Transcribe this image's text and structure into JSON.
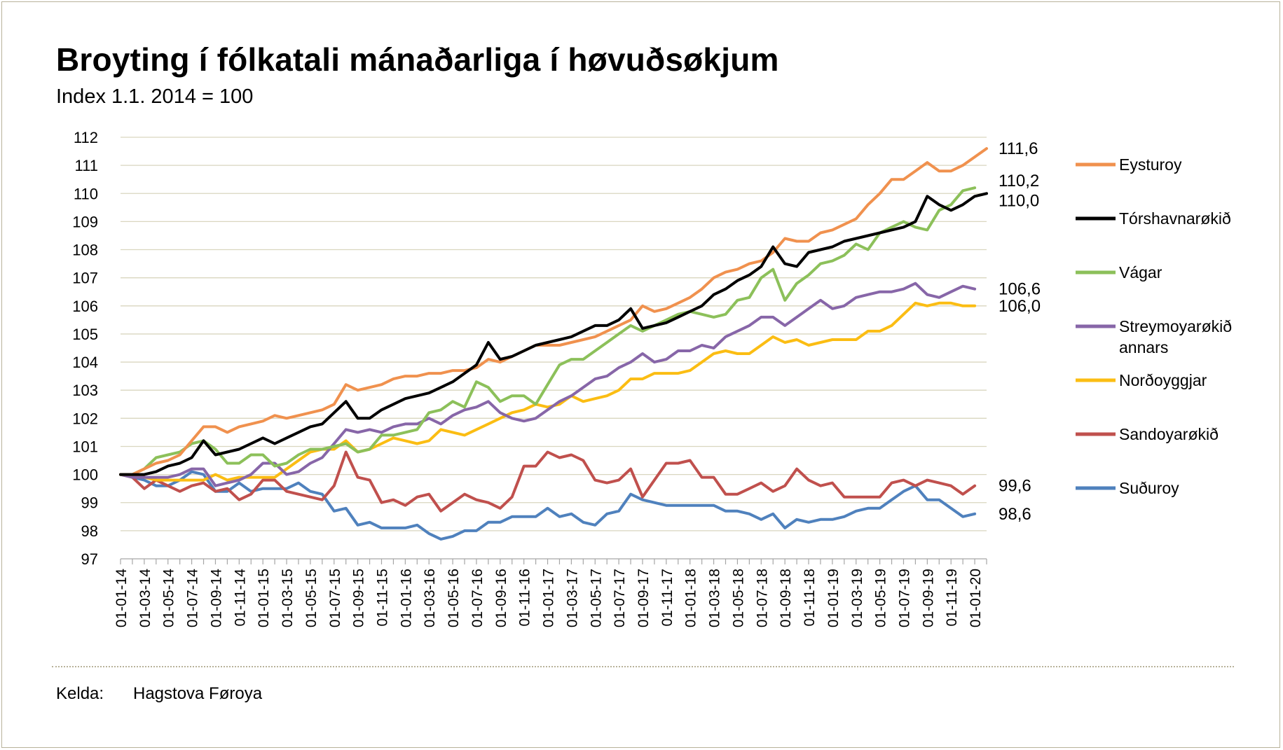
{
  "title": "Broyting í fólkatali mánaðarliga í høvuðsøkjum",
  "subtitle": "Index 1.1. 2014 = 100",
  "source": {
    "label": "Kelda:",
    "value": "Hagstova Føroya"
  },
  "chart_data": {
    "type": "line",
    "ylim": [
      97,
      112
    ],
    "yticks": [
      97,
      98,
      99,
      100,
      101,
      102,
      103,
      104,
      105,
      106,
      107,
      108,
      109,
      110,
      111,
      112
    ],
    "grid": true,
    "legend_position": "right",
    "x_tick_labels": [
      "01-01-14",
      "01-03-14",
      "01-05-14",
      "01-07-14",
      "01-09-14",
      "01-11-14",
      "01-01-15",
      "01-03-15",
      "01-05-15",
      "01-07-15",
      "01-09-15",
      "01-11-15",
      "01-01-16",
      "01-03-16",
      "01-05-16",
      "01-07-16",
      "01-09-16",
      "01-11-16",
      "01-01-17",
      "01-03-17",
      "01-05-17",
      "01-07-17",
      "01-09-17",
      "01-11-17",
      "01-01-18",
      "01-03-18",
      "01-05-18",
      "01-07-18",
      "01-09-18",
      "01-11-18",
      "01-01-19",
      "01-03-19",
      "01-05-19",
      "01-07-19",
      "01-09-19",
      "01-11-19",
      "01-01-20"
    ],
    "series": [
      {
        "name": "Eysturoy",
        "color": "#f0914e",
        "end_label": "111,6",
        "values": [
          100,
          100.0,
          100.2,
          100.4,
          100.5,
          100.7,
          101.2,
          101.7,
          101.7,
          101.5,
          101.7,
          101.8,
          101.9,
          102.1,
          102.0,
          102.1,
          102.2,
          102.3,
          102.5,
          103.2,
          103.0,
          103.1,
          103.2,
          103.4,
          103.5,
          103.5,
          103.6,
          103.6,
          103.7,
          103.7,
          103.8,
          104.1,
          104.0,
          104.2,
          104.4,
          104.6,
          104.6,
          104.6,
          104.7,
          104.8,
          104.9,
          105.1,
          105.3,
          105.5,
          106.0,
          105.8,
          105.9,
          106.1,
          106.3,
          106.6,
          107.0,
          107.2,
          107.3,
          107.5,
          107.6,
          107.9,
          108.4,
          108.3,
          108.3,
          108.6,
          108.7,
          108.9,
          109.1,
          109.6,
          110.0,
          110.5,
          110.5,
          110.8,
          111.1,
          110.8,
          110.8,
          111.0,
          111.3,
          111.6
        ]
      },
      {
        "name": "Tórshavnarøkið",
        "color": "#000000",
        "end_label": "110,0",
        "values": [
          100,
          100.0,
          100.0,
          100.1,
          100.3,
          100.4,
          100.6,
          101.2,
          100.7,
          100.8,
          100.9,
          101.1,
          101.3,
          101.1,
          101.3,
          101.5,
          101.7,
          101.8,
          102.2,
          102.6,
          102.0,
          102.0,
          102.3,
          102.5,
          102.7,
          102.8,
          102.9,
          103.1,
          103.3,
          103.6,
          103.9,
          104.7,
          104.1,
          104.2,
          104.4,
          104.6,
          104.7,
          104.8,
          104.9,
          105.1,
          105.3,
          105.3,
          105.5,
          105.9,
          105.2,
          105.3,
          105.4,
          105.6,
          105.8,
          106.0,
          106.4,
          106.6,
          106.9,
          107.1,
          107.4,
          108.1,
          107.5,
          107.4,
          107.9,
          108.0,
          108.1,
          108.3,
          108.4,
          108.5,
          108.6,
          108.7,
          108.8,
          109.0,
          109.9,
          109.6,
          109.4,
          109.6,
          109.9,
          110.0
        ]
      },
      {
        "name": "Vágar",
        "color": "#8cc05a",
        "end_label": "110,2",
        "values": [
          100,
          100.0,
          100.2,
          100.6,
          100.7,
          100.8,
          101.1,
          101.2,
          100.9,
          100.4,
          100.4,
          100.7,
          100.7,
          100.3,
          100.4,
          100.7,
          100.9,
          100.9,
          101.0,
          101.1,
          100.8,
          100.9,
          101.4,
          101.4,
          101.5,
          101.6,
          102.2,
          102.3,
          102.6,
          102.4,
          103.3,
          103.1,
          102.6,
          102.8,
          102.8,
          102.5,
          103.2,
          103.9,
          104.1,
          104.1,
          104.4,
          104.7,
          105.0,
          105.3,
          105.1,
          105.3,
          105.5,
          105.7,
          105.8,
          105.7,
          105.6,
          105.7,
          106.2,
          106.3,
          107.0,
          107.3,
          106.2,
          106.8,
          107.1,
          107.5,
          107.6,
          107.8,
          108.2,
          108.0,
          108.6,
          108.8,
          109.0,
          108.8,
          108.7,
          109.4,
          109.6,
          110.1,
          110.2
        ]
      },
      {
        "name": "Streymoyarøkið annars",
        "color": "#8766a8",
        "end_label": "106,6",
        "values": [
          100,
          99.9,
          99.9,
          99.9,
          99.9,
          100.0,
          100.2,
          100.2,
          99.6,
          99.7,
          99.8,
          100.0,
          100.4,
          100.4,
          100.0,
          100.1,
          100.4,
          100.6,
          101.1,
          101.6,
          101.5,
          101.6,
          101.5,
          101.7,
          101.8,
          101.8,
          102.0,
          101.8,
          102.1,
          102.3,
          102.4,
          102.6,
          102.2,
          102.0,
          101.9,
          102.0,
          102.3,
          102.6,
          102.8,
          103.1,
          103.4,
          103.5,
          103.8,
          104.0,
          104.3,
          104.0,
          104.1,
          104.4,
          104.4,
          104.6,
          104.5,
          104.9,
          105.1,
          105.3,
          105.6,
          105.6,
          105.3,
          105.6,
          105.9,
          106.2,
          105.9,
          106.0,
          106.3,
          106.4,
          106.5,
          106.5,
          106.6,
          106.8,
          106.4,
          106.3,
          106.5,
          106.7,
          106.6
        ]
      },
      {
        "name": "Norðoyggjar",
        "color": "#fbbd13",
        "end_label": "106,0",
        "values": [
          100,
          100.0,
          99.9,
          99.8,
          99.8,
          99.8,
          99.8,
          99.8,
          100.0,
          99.8,
          99.9,
          99.9,
          99.9,
          99.9,
          100.2,
          100.5,
          100.8,
          100.9,
          100.9,
          101.2,
          100.8,
          100.9,
          101.1,
          101.3,
          101.2,
          101.1,
          101.2,
          101.6,
          101.5,
          101.4,
          101.6,
          101.8,
          102.0,
          102.2,
          102.3,
          102.5,
          102.4,
          102.5,
          102.8,
          102.6,
          102.7,
          102.8,
          103.0,
          103.4,
          103.4,
          103.6,
          103.6,
          103.6,
          103.7,
          104.0,
          104.3,
          104.4,
          104.3,
          104.3,
          104.6,
          104.9,
          104.7,
          104.8,
          104.6,
          104.7,
          104.8,
          104.8,
          104.8,
          105.1,
          105.1,
          105.3,
          105.7,
          106.1,
          106.0,
          106.1,
          106.1,
          106.0,
          106.0
        ]
      },
      {
        "name": "Sandoyarøkið",
        "color": "#c0504d",
        "end_label": "99,6",
        "values": [
          100,
          99.9,
          99.5,
          99.8,
          99.6,
          99.4,
          99.6,
          99.7,
          99.4,
          99.5,
          99.1,
          99.3,
          99.8,
          99.8,
          99.4,
          99.3,
          99.2,
          99.1,
          99.6,
          100.8,
          99.9,
          99.8,
          99.0,
          99.1,
          98.9,
          99.2,
          99.3,
          98.7,
          99.0,
          99.3,
          99.1,
          99.0,
          98.8,
          99.2,
          100.3,
          100.3,
          100.8,
          100.6,
          100.7,
          100.5,
          99.8,
          99.7,
          99.8,
          100.2,
          99.2,
          99.8,
          100.4,
          100.4,
          100.5,
          99.9,
          99.9,
          99.3,
          99.3,
          99.5,
          99.7,
          99.4,
          99.6,
          100.2,
          99.8,
          99.6,
          99.7,
          99.2,
          99.2,
          99.2,
          99.2,
          99.7,
          99.8,
          99.6,
          99.8,
          99.7,
          99.6,
          99.3,
          99.6
        ]
      },
      {
        "name": "Suðuroy",
        "color": "#4f81bd",
        "end_label": "98,6",
        "values": [
          100,
          99.9,
          99.8,
          99.6,
          99.6,
          99.8,
          100.1,
          100.0,
          99.4,
          99.4,
          99.7,
          99.4,
          99.5,
          99.5,
          99.5,
          99.7,
          99.4,
          99.3,
          98.7,
          98.8,
          98.2,
          98.3,
          98.1,
          98.1,
          98.1,
          98.2,
          97.9,
          97.7,
          97.8,
          98.0,
          98.0,
          98.3,
          98.3,
          98.5,
          98.5,
          98.5,
          98.8,
          98.5,
          98.6,
          98.3,
          98.2,
          98.6,
          98.7,
          99.3,
          99.1,
          99.0,
          98.9,
          98.9,
          98.9,
          98.9,
          98.9,
          98.7,
          98.7,
          98.6,
          98.4,
          98.6,
          98.1,
          98.4,
          98.3,
          98.4,
          98.4,
          98.5,
          98.7,
          98.8,
          98.8,
          99.1,
          99.4,
          99.6,
          99.1,
          99.1,
          98.8,
          98.5,
          98.6
        ]
      }
    ]
  }
}
